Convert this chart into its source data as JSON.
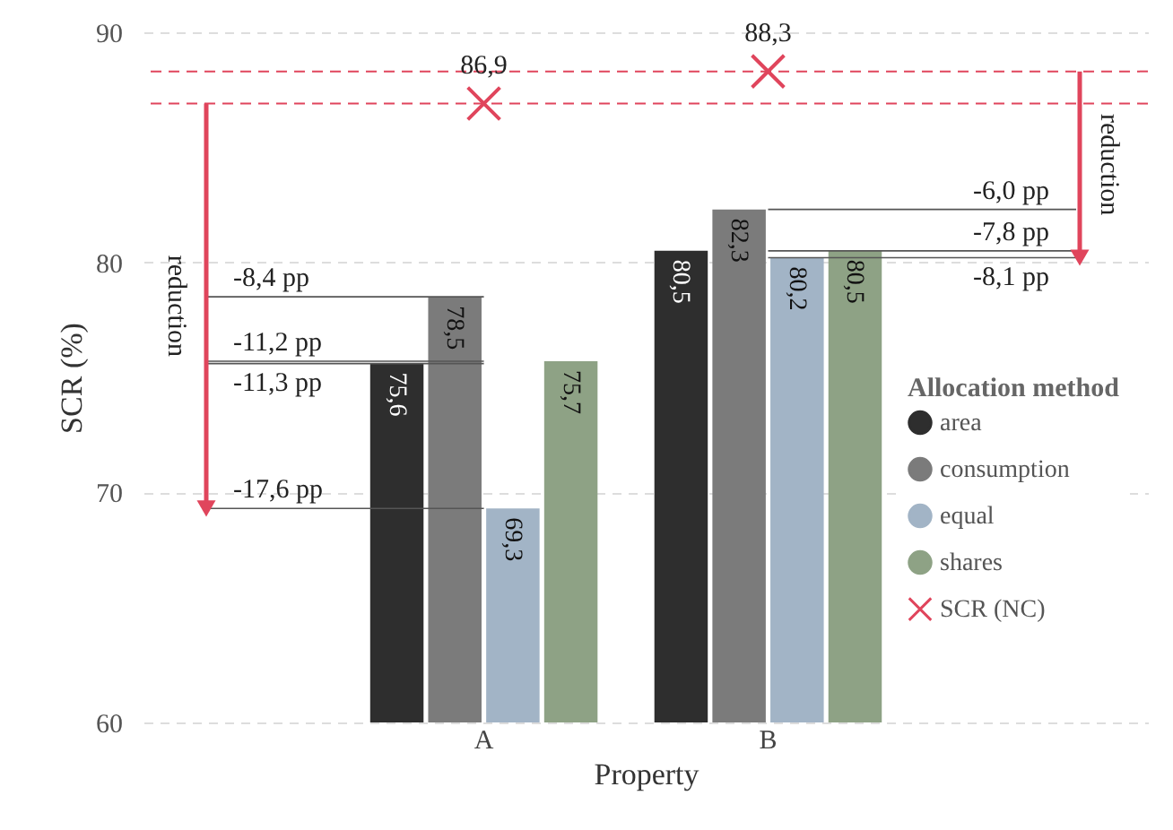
{
  "chart_data": {
    "type": "bar",
    "xlabel": "Property",
    "ylabel": "SCR (%)",
    "legend_title": "Allocation method",
    "categories": [
      "A",
      "B"
    ],
    "series": [
      {
        "name": "area",
        "color": "#2e2e2e",
        "values": [
          75.6,
          80.5
        ],
        "value_labels": [
          "75,6",
          "80,5"
        ]
      },
      {
        "name": "consumption",
        "color": "#7b7b7b",
        "values": [
          78.5,
          82.3
        ],
        "value_labels": [
          "78,5",
          "82,3"
        ]
      },
      {
        "name": "equal",
        "color": "#a2b4c6",
        "values": [
          69.3,
          80.2
        ],
        "value_labels": [
          "69,3",
          "80,2"
        ]
      },
      {
        "name": "shares",
        "color": "#8ea285",
        "values": [
          75.7,
          80.5
        ],
        "value_labels": [
          "75,7",
          "80,5"
        ]
      },
      {
        "name": "SCR (NC)",
        "type": "scatter",
        "marker": "cross",
        "color": "#e0455c",
        "x": [
          "A",
          "B"
        ],
        "values": [
          86.9,
          88.3
        ],
        "value_labels": [
          "86,9",
          "88,3"
        ]
      }
    ],
    "ylim": [
      60,
      90
    ],
    "yticks": [
      60,
      70,
      80,
      90
    ],
    "grid": "y",
    "legend": "right",
    "ref_lines": [
      {
        "axis": "y",
        "value": 86.9,
        "color": "#e0455c",
        "line_style": "dashed"
      },
      {
        "axis": "y",
        "value": 88.3,
        "color": "#e0455c",
        "line_style": "dashed"
      }
    ],
    "annotations": [
      {
        "text": "-8,4 pp",
        "x": "A",
        "y": 78.5
      },
      {
        "text": "-11,2 pp",
        "x": "A",
        "y": 75.7
      },
      {
        "text": "-11,3 pp",
        "x": "A",
        "y": 75.6
      },
      {
        "text": "-17,6 pp",
        "x": "A",
        "y": 69.3
      },
      {
        "text": "-6,0 pp",
        "x": "B",
        "y": 82.3
      },
      {
        "text": "-7,8 pp",
        "x": "B",
        "y": 80.5
      },
      {
        "text": "-8,1 pp",
        "x": "B",
        "y": 80.2
      },
      "reduction",
      "reduction"
    ]
  }
}
